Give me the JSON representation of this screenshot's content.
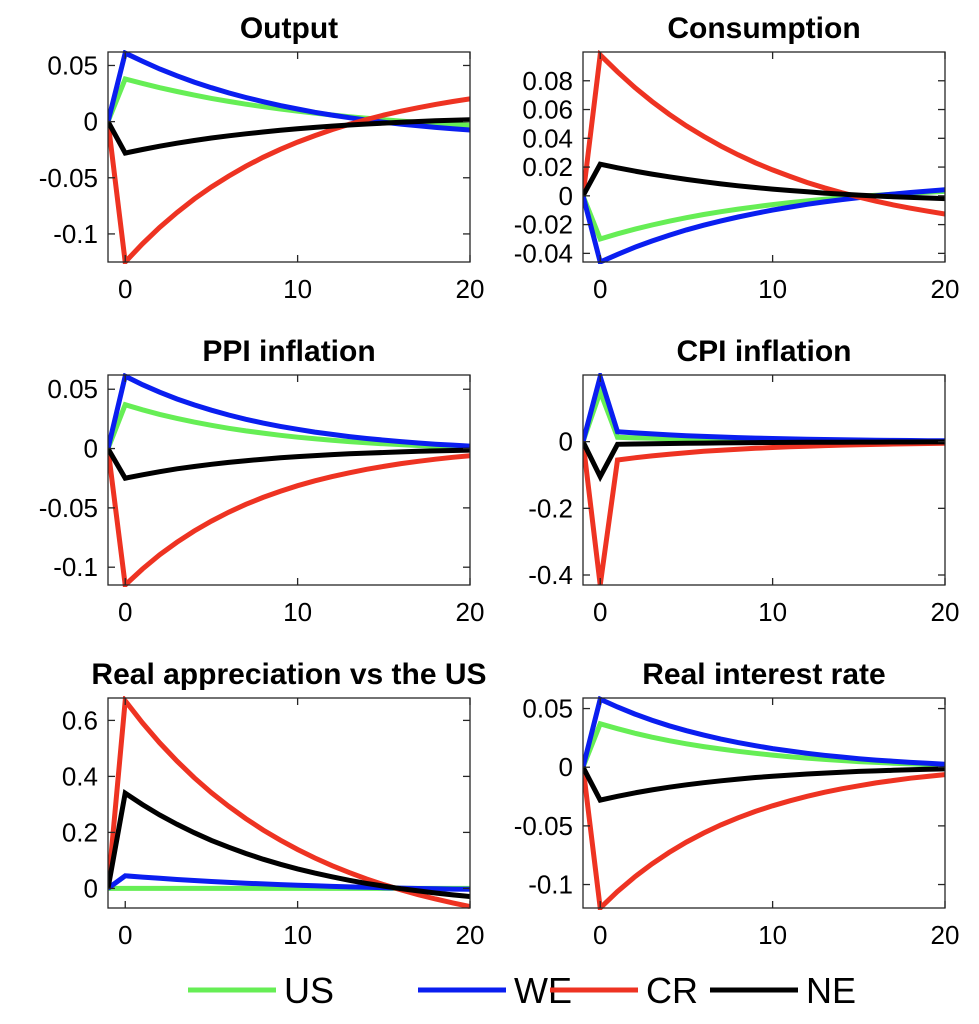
{
  "series_colors": {
    "US": "#66ee55",
    "WE": "#0a1ef0",
    "CR": "#ee3322",
    "NE": "#000000"
  },
  "legend": [
    {
      "name": "US",
      "color": "#66ee55"
    },
    {
      "name": "WE",
      "color": "#0a1ef0"
    },
    {
      "name": "CR",
      "color": "#ee3322"
    },
    {
      "name": "NE",
      "color": "#000000"
    }
  ],
  "chart_data": [
    {
      "type": "line",
      "title": "Output",
      "xlim": [
        -1,
        20
      ],
      "ylim": [
        -0.125,
        0.062
      ],
      "xticks": [
        0,
        10,
        20
      ],
      "xtick_labels": [
        "0",
        "10",
        "20"
      ],
      "yticks": [
        -0.1,
        -0.05,
        0,
        0.05
      ],
      "ytick_labels": [
        "-0.1",
        "-0.05",
        "0",
        "0.05"
      ],
      "x": [
        -1,
        0,
        1,
        2,
        3,
        4,
        5,
        6,
        7,
        8,
        9,
        10,
        11,
        12,
        13,
        14,
        15,
        16,
        17,
        18,
        19,
        20
      ],
      "series": [
        {
          "name": "US",
          "values": [
            0,
            0.038,
            0.034,
            0.0302,
            0.0268,
            0.0236,
            0.0207,
            0.018,
            0.0155,
            0.0133,
            0.0112,
            0.0093,
            0.0075,
            0.0059,
            0.0044,
            0.003,
            0.0017,
            0.0005,
            -0.0006,
            -0.0016,
            -0.0025,
            -0.0033
          ]
        },
        {
          "name": "WE",
          "values": [
            0,
            0.061,
            0.0537,
            0.0469,
            0.0408,
            0.0352,
            0.0302,
            0.0256,
            0.0215,
            0.0177,
            0.0143,
            0.0112,
            0.0083,
            0.0058,
            0.0035,
            0.0014,
            -0.0005,
            -0.0022,
            -0.0037,
            -0.0051,
            -0.0063,
            -0.0075
          ]
        },
        {
          "name": "CR",
          "values": [
            0,
            -0.125,
            -0.1088,
            -0.0941,
            -0.0809,
            -0.0689,
            -0.0582,
            -0.0485,
            -0.0397,
            -0.0318,
            -0.0246,
            -0.0182,
            -0.0124,
            -0.0071,
            -0.0024,
            0.0019,
            0.0058,
            0.0093,
            0.0124,
            0.0153,
            0.0179,
            0.0202
          ]
        },
        {
          "name": "NE",
          "values": [
            0,
            -0.028,
            -0.0248,
            -0.0219,
            -0.0192,
            -0.0168,
            -0.0146,
            -0.0126,
            -0.0108,
            -0.0092,
            -0.0077,
            -0.0063,
            -0.0051,
            -0.004,
            -0.003,
            -0.0021,
            -0.0013,
            -0.0006,
            0.0001,
            0.0007,
            0.0012,
            0.0017
          ]
        }
      ]
    },
    {
      "type": "line",
      "title": "Consumption",
      "xlim": [
        -1,
        20
      ],
      "ylim": [
        -0.046,
        0.1
      ],
      "xticks": [
        0,
        10,
        20
      ],
      "xtick_labels": [
        "0",
        "10",
        "20"
      ],
      "yticks": [
        -0.04,
        -0.02,
        0,
        0.02,
        0.04,
        0.06,
        0.08
      ],
      "ytick_labels": [
        "-0.04",
        "-0.02",
        "0",
        "0.02",
        "0.04",
        "0.06",
        "0.08"
      ],
      "x": [
        -1,
        0,
        1,
        2,
        3,
        4,
        5,
        6,
        7,
        8,
        9,
        10,
        11,
        12,
        13,
        14,
        15,
        16,
        17,
        18,
        19,
        20
      ],
      "series": [
        {
          "name": "US",
          "values": [
            0,
            -0.03,
            -0.0264,
            -0.0232,
            -0.0203,
            -0.0176,
            -0.0152,
            -0.013,
            -0.011,
            -0.0092,
            -0.0076,
            -0.0061,
            -0.0047,
            -0.0035,
            -0.0024,
            -0.0013,
            -0.0004,
            0.0004,
            0.0012,
            0.0019,
            0.0025,
            0.0031
          ]
        },
        {
          "name": "WE",
          "values": [
            0,
            -0.046,
            -0.0407,
            -0.0358,
            -0.0314,
            -0.0274,
            -0.0237,
            -0.0204,
            -0.0174,
            -0.0147,
            -0.0122,
            -0.0099,
            -0.0078,
            -0.0059,
            -0.0042,
            -0.0027,
            -0.0012,
            0.0001,
            0.0012,
            0.0023,
            0.0033,
            0.0042
          ]
        },
        {
          "name": "CR",
          "values": [
            0,
            0.098,
            0.0862,
            0.0754,
            0.0656,
            0.0567,
            0.0486,
            0.0413,
            0.0346,
            0.0285,
            0.023,
            0.018,
            0.0135,
            0.0093,
            0.0056,
            0.0022,
            -0.0009,
            -0.0037,
            -0.0063,
            -0.0086,
            -0.0107,
            -0.0126
          ]
        },
        {
          "name": "NE",
          "values": [
            0,
            0.022,
            0.0195,
            0.0172,
            0.0151,
            0.0132,
            0.0114,
            0.0098,
            0.0083,
            0.007,
            0.0058,
            0.0047,
            0.0037,
            0.0028,
            0.0019,
            0.0012,
            0.0005,
            -0.0001,
            -0.0006,
            -0.0011,
            -0.0015,
            -0.0019
          ]
        }
      ]
    },
    {
      "type": "line",
      "title": "PPI inflation",
      "xlim": [
        -1,
        20
      ],
      "ylim": [
        -0.115,
        0.062
      ],
      "xticks": [
        0,
        10,
        20
      ],
      "xtick_labels": [
        "0",
        "10",
        "20"
      ],
      "yticks": [
        -0.1,
        -0.05,
        0,
        0.05
      ],
      "ytick_labels": [
        "-0.1",
        "-0.05",
        "0",
        "0.05"
      ],
      "x": [
        -1,
        0,
        1,
        2,
        3,
        4,
        5,
        6,
        7,
        8,
        9,
        10,
        11,
        12,
        13,
        14,
        15,
        16,
        17,
        18,
        19,
        20
      ],
      "series": [
        {
          "name": "US",
          "values": [
            0,
            0.037,
            0.0327,
            0.0288,
            0.0254,
            0.0223,
            0.0196,
            0.0171,
            0.0149,
            0.013,
            0.0112,
            0.0096,
            0.0082,
            0.007,
            0.0059,
            0.0049,
            0.004,
            0.0033,
            0.0026,
            0.002,
            0.0014,
            0.001
          ]
        },
        {
          "name": "WE",
          "values": [
            0,
            0.061,
            0.0538,
            0.0475,
            0.0418,
            0.0368,
            0.0323,
            0.0283,
            0.0247,
            0.0215,
            0.0187,
            0.0162,
            0.0139,
            0.0119,
            0.0101,
            0.0085,
            0.0071,
            0.0059,
            0.0047,
            0.0037,
            0.0029,
            0.0021
          ]
        },
        {
          "name": "CR",
          "values": [
            0,
            -0.115,
            -0.1015,
            -0.0895,
            -0.0789,
            -0.0695,
            -0.0611,
            -0.0536,
            -0.047,
            -0.0412,
            -0.036,
            -0.0313,
            -0.0272,
            -0.0236,
            -0.0204,
            -0.0175,
            -0.015,
            -0.0127,
            -0.0107,
            -0.009,
            -0.0074,
            -0.006
          ]
        },
        {
          "name": "NE",
          "values": [
            0,
            -0.025,
            -0.0221,
            -0.0195,
            -0.0171,
            -0.0151,
            -0.0133,
            -0.0117,
            -0.0102,
            -0.009,
            -0.0078,
            -0.0068,
            -0.0059,
            -0.0051,
            -0.0044,
            -0.0038,
            -0.0033,
            -0.0028,
            -0.0023,
            -0.002,
            -0.0016,
            -0.0013
          ]
        }
      ]
    },
    {
      "type": "line",
      "title": "CPI inflation",
      "xlim": [
        -1,
        20
      ],
      "ylim": [
        -0.43,
        0.2
      ],
      "xticks": [
        0,
        10,
        20
      ],
      "xtick_labels": [
        "0",
        "10",
        "20"
      ],
      "yticks": [
        -0.4,
        -0.2,
        0
      ],
      "ytick_labels": [
        "-0.4",
        "-0.2",
        "0"
      ],
      "x": [
        -1,
        0,
        1,
        2,
        3,
        4,
        5,
        6,
        7,
        8,
        9,
        10,
        11,
        12,
        13,
        14,
        15,
        16,
        17,
        18,
        19,
        20
      ],
      "series": [
        {
          "name": "US",
          "values": [
            0,
            0.15,
            0.013,
            0.0114,
            0.01,
            0.0088,
            0.0077,
            0.0067,
            0.0059,
            0.0052,
            0.0045,
            0.004,
            0.0035,
            0.003,
            0.0027,
            0.0023,
            0.002,
            0.0018,
            0.0016,
            0.0014,
            0.0012,
            0.0011
          ]
        },
        {
          "name": "WE",
          "values": [
            0,
            0.195,
            0.03,
            0.0264,
            0.0232,
            0.0204,
            0.018,
            0.0158,
            0.0139,
            0.0122,
            0.0108,
            0.0095,
            0.0083,
            0.0073,
            0.0065,
            0.0057,
            0.005,
            0.0044,
            0.0039,
            0.0034,
            0.003,
            0.0026
          ]
        },
        {
          "name": "CR",
          "values": [
            0,
            -0.43,
            -0.055,
            -0.0484,
            -0.0426,
            -0.0375,
            -0.033,
            -0.029,
            -0.0256,
            -0.0225,
            -0.0198,
            -0.0174,
            -0.0153,
            -0.0135,
            -0.0119,
            -0.0104,
            -0.0092,
            -0.0081,
            -0.0071,
            -0.0063,
            -0.0055,
            -0.0048
          ]
        },
        {
          "name": "NE",
          "values": [
            0,
            -0.105,
            -0.008,
            -0.007,
            -0.0062,
            -0.0055,
            -0.0048,
            -0.0042,
            -0.0037,
            -0.0033,
            -0.0029,
            -0.0025,
            -0.0022,
            -0.002,
            -0.0017,
            -0.0015,
            -0.0013,
            -0.0012,
            -0.001,
            -0.0009,
            -0.0008,
            -0.0007
          ]
        }
      ]
    },
    {
      "type": "line",
      "title": "Real appreciation vs the US",
      "xlim": [
        -1,
        20
      ],
      "ylim": [
        -0.07,
        0.68
      ],
      "xticks": [
        0,
        10,
        20
      ],
      "xtick_labels": [
        "0",
        "10",
        "20"
      ],
      "yticks": [
        0,
        0.2,
        0.4,
        0.6
      ],
      "ytick_labels": [
        "0",
        "0.2",
        "0.4",
        "0.6"
      ],
      "x": [
        -1,
        0,
        1,
        2,
        3,
        4,
        5,
        6,
        7,
        8,
        9,
        10,
        11,
        12,
        13,
        14,
        15,
        16,
        17,
        18,
        19,
        20
      ],
      "series": [
        {
          "name": "US",
          "values": [
            0,
            0,
            0,
            0,
            0,
            0,
            0,
            0,
            0,
            0,
            0,
            0,
            0,
            0,
            0,
            0,
            0,
            0,
            0,
            0,
            0,
            0
          ]
        },
        {
          "name": "WE",
          "values": [
            0,
            0.045,
            0.0403,
            0.0359,
            0.0319,
            0.0282,
            0.0248,
            0.0216,
            0.0187,
            0.016,
            0.0135,
            0.0113,
            0.0092,
            0.0073,
            0.0055,
            0.0039,
            0.0024,
            0.0011,
            -0.0002,
            -0.0013,
            -0.0024,
            -0.0033
          ]
        },
        {
          "name": "CR",
          "values": [
            0,
            0.67,
            0.5912,
            0.5196,
            0.4546,
            0.3955,
            0.3418,
            0.2931,
            0.2488,
            0.2085,
            0.172,
            0.1388,
            0.1086,
            0.0812,
            0.0563,
            0.0337,
            0.0131,
            -0.0055,
            -0.0225,
            -0.0379,
            -0.0519,
            -0.0646
          ]
        },
        {
          "name": "NE",
          "values": [
            0,
            0.34,
            0.2992,
            0.2623,
            0.229,
            0.1989,
            0.1716,
            0.147,
            0.1246,
            0.1044,
            0.0862,
            0.0697,
            0.0548,
            0.0413,
            0.0291,
            0.018,
            0.0081,
            -0.0009,
            -0.0091,
            -0.0165,
            -0.0231,
            -0.0291
          ]
        }
      ]
    },
    {
      "type": "line",
      "title": "Real interest rate",
      "xlim": [
        -1,
        20
      ],
      "ylim": [
        -0.12,
        0.059
      ],
      "xticks": [
        0,
        10,
        20
      ],
      "xtick_labels": [
        "0",
        "10",
        "20"
      ],
      "yticks": [
        -0.1,
        -0.05,
        0,
        0.05
      ],
      "ytick_labels": [
        "-0.1",
        "-0.05",
        "0",
        "0.05"
      ],
      "x": [
        -1,
        0,
        1,
        2,
        3,
        4,
        5,
        6,
        7,
        8,
        9,
        10,
        11,
        12,
        13,
        14,
        15,
        16,
        17,
        18,
        19,
        20
      ],
      "series": [
        {
          "name": "US",
          "values": [
            0,
            0.037,
            0.0328,
            0.029,
            0.0256,
            0.0226,
            0.02,
            0.0176,
            0.0155,
            0.0136,
            0.0119,
            0.0103,
            0.009,
            0.0078,
            0.0067,
            0.0057,
            0.0048,
            0.0041,
            0.0034,
            0.0028,
            0.0022,
            0.0018
          ]
        },
        {
          "name": "WE",
          "values": [
            0,
            0.058,
            0.0513,
            0.0454,
            0.0401,
            0.0353,
            0.0311,
            0.0274,
            0.024,
            0.021,
            0.0183,
            0.0159,
            0.0138,
            0.0119,
            0.0102,
            0.0087,
            0.0073,
            0.0061,
            0.0051,
            0.0041,
            0.0033,
            0.0025
          ]
        },
        {
          "name": "CR",
          "values": [
            0,
            -0.12,
            -0.1059,
            -0.0935,
            -0.0824,
            -0.0726,
            -0.0638,
            -0.0561,
            -0.0492,
            -0.0431,
            -0.0377,
            -0.0329,
            -0.0286,
            -0.0248,
            -0.0214,
            -0.0184,
            -0.0158,
            -0.0134,
            -0.0113,
            -0.0094,
            -0.0078,
            -0.0063
          ]
        },
        {
          "name": "NE",
          "values": [
            0,
            -0.028,
            -0.0248,
            -0.0219,
            -0.0193,
            -0.017,
            -0.015,
            -0.0132,
            -0.0116,
            -0.0101,
            -0.0088,
            -0.0077,
            -0.0067,
            -0.0058,
            -0.005,
            -0.0043,
            -0.0036,
            -0.0031,
            -0.0026,
            -0.0021,
            -0.0017,
            -0.0014
          ]
        }
      ]
    }
  ]
}
